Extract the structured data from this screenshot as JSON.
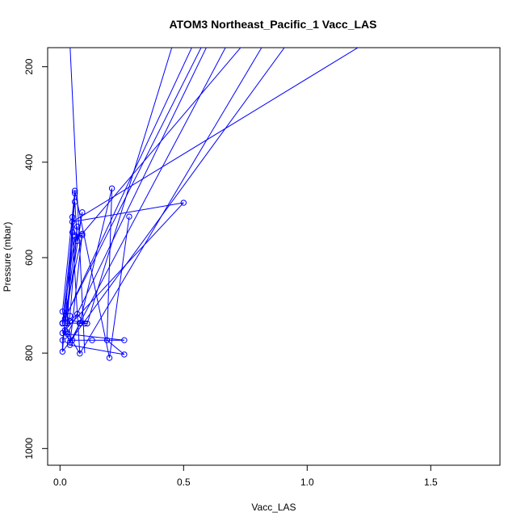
{
  "chart_data": {
    "type": "scatter",
    "title": "ATOM3 Northeast_Pacific_1 Vacc_LAS",
    "xlabel": "Vacc_LAS",
    "ylabel": "Pressure (mbar)",
    "xlim": [
      -0.05,
      1.78
    ],
    "ylim": [
      1035,
      160
    ],
    "y_reversed": true,
    "x_ticks": [
      0.0,
      0.5,
      1.0,
      1.5
    ],
    "x_tick_labels": [
      "0.0",
      "0.5",
      "1.0",
      "1.5"
    ],
    "y_ticks": [
      200,
      400,
      600,
      800,
      1000
    ],
    "y_tick_labels": [
      "200",
      "400",
      "600",
      "800",
      "1000"
    ],
    "grid": false,
    "legend": "none",
    "series": [
      {
        "color": "#0000ff",
        "marker": "open-circle",
        "lines": true,
        "x": [
          0.28,
          0.2,
          0.06,
          0.01,
          0.02,
          0.1,
          0.07,
          0.04,
          0.01,
          0.03,
          0.26,
          0.13,
          0.03,
          0.05,
          0.08,
          0.21,
          0.19,
          0.26,
          0.04,
          0.09,
          0.06,
          0.05,
          0.03,
          0.06,
          0.01,
          0.01,
          0.09,
          0.07,
          0.06,
          0.05,
          0.5,
          0.02,
          0.04,
          0.08,
          0.11,
          0.02,
          0.07,
          0.04,
          0.03,
          0.01,
          0.06,
          0.09,
          0.01,
          0.05,
          0.08,
          0.03
        ],
        "y": [
          514,
          810,
          460,
          713,
          728,
          738,
          718,
          733,
          758,
          760,
          773,
          773,
          773,
          773,
          737,
          455,
          773,
          803,
          783,
          550,
          553,
          515,
          737,
          465,
          797,
          773,
          505,
          565,
          483,
          525,
          485,
          752,
          778,
          738,
          738,
          737,
          535,
          722,
          738,
          737,
          556,
          553,
          738,
          547,
          801,
          757
        ]
      }
    ]
  }
}
